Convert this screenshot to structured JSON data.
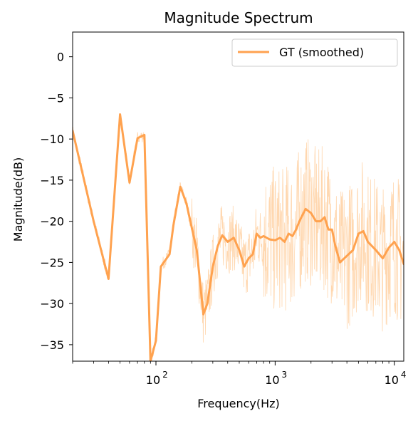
{
  "chart_data": {
    "type": "line",
    "title": "Magnitude Spectrum",
    "xlabel": "Frequency(Hz)",
    "ylabel": "Magnitude(dB)",
    "xscale": "log",
    "xlim": [
      20,
      12000
    ],
    "ylim": [
      -37,
      3
    ],
    "yticks": [
      0,
      -5,
      -10,
      -15,
      -20,
      -25,
      -30,
      -35
    ],
    "ytick_labels": [
      "0",
      "−5",
      "−10",
      "−15",
      "−20",
      "−25",
      "−30",
      "−35"
    ],
    "xticks_major": [
      100,
      1000,
      10000
    ],
    "xtick_labels": [
      "10",
      "10",
      "10"
    ],
    "xtick_exponents": [
      "2",
      "3",
      "4"
    ],
    "legend": {
      "placement": "top-right",
      "entries": [
        "GT (smoothed)"
      ]
    },
    "grid": false,
    "colors": {
      "smoothed": "#ffa24f",
      "raw": "#ffc994"
    },
    "series": [
      {
        "name": "GT (smoothed)",
        "x": [
          20,
          30,
          40,
          50,
          60,
          70,
          80,
          90,
          100,
          110,
          130,
          140,
          160,
          180,
          200,
          220,
          250,
          270,
          300,
          330,
          360,
          400,
          450,
          500,
          550,
          600,
          650,
          700,
          750,
          800,
          900,
          1000,
          1100,
          1200,
          1300,
          1400,
          1500,
          1600,
          1800,
          2000,
          2200,
          2400,
          2600,
          2800,
          3000,
          3200,
          3500,
          4000,
          4500,
          5000,
          5500,
          6000,
          7000,
          8000,
          9000,
          10000,
          11000,
          12000
        ],
        "y": [
          -9,
          -20,
          -27,
          -7,
          -15.3,
          -9.9,
          -9.5,
          -37,
          -34.5,
          -25.5,
          -24,
          -20.5,
          -15.8,
          -17.8,
          -20.8,
          -23.5,
          -31.3,
          -30,
          -25.5,
          -23,
          -21.7,
          -22.5,
          -22,
          -23.5,
          -25.5,
          -24.5,
          -24,
          -21.5,
          -22,
          -21.8,
          -22.2,
          -22.3,
          -22,
          -22.5,
          -21.5,
          -21.8,
          -21,
          -20,
          -18.5,
          -19,
          -20,
          -20,
          -19.5,
          -21,
          -21,
          -23,
          -25,
          -24.2,
          -23.5,
          -21.5,
          -21.2,
          -22.5,
          -23.5,
          -24.5,
          -23.2,
          -22.5,
          -23.5,
          -25.2
        ]
      }
    ]
  }
}
